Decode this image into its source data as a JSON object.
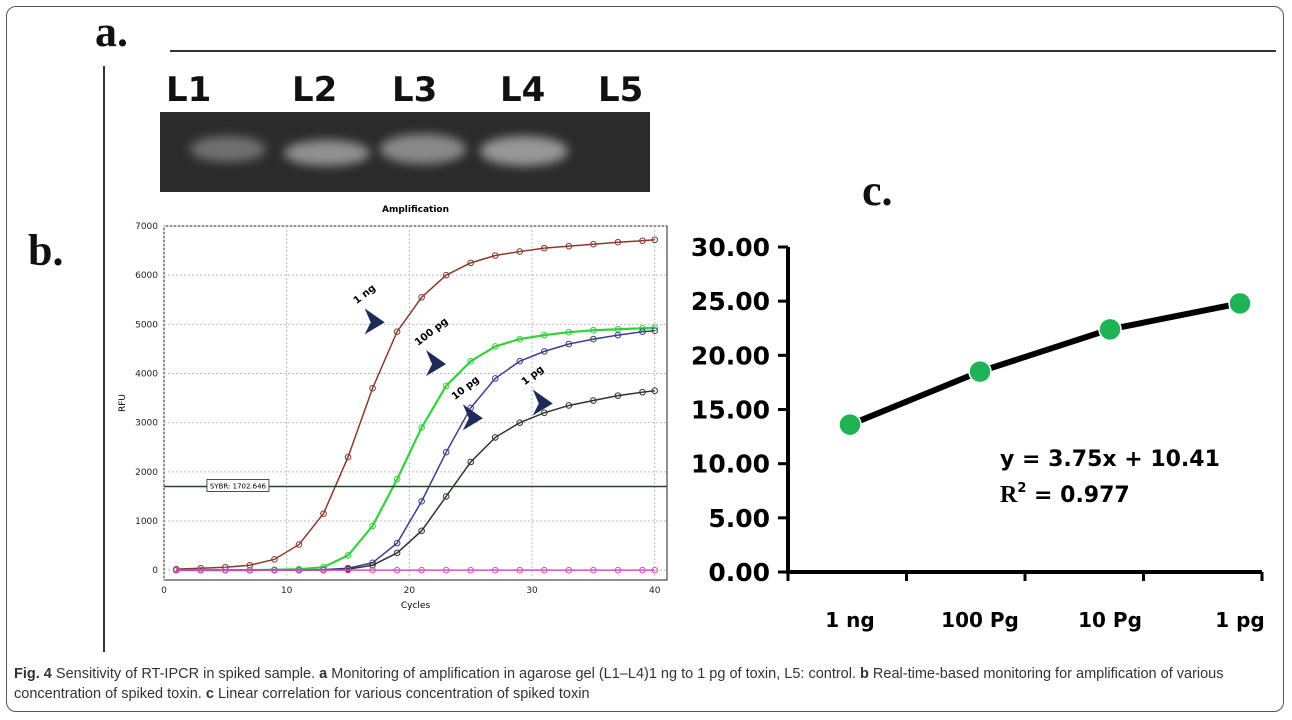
{
  "panels": {
    "a": "a",
    "b": "b",
    "c": "c"
  },
  "panel_suffix": ".",
  "gel": {
    "lanes": [
      "L1",
      "L2",
      "L3",
      "L4",
      "L5"
    ],
    "band_intensity": [
      0.55,
      0.8,
      0.75,
      0.85,
      0.0
    ]
  },
  "caption": {
    "figure": "Fig. 4",
    "intro": "Sensitivity of RT-IPCR in spiked sample.",
    "a_letter": "a",
    "a_text": "Monitoring of amplification in agarose gel (L1–L4)1 ng to 1 pg of toxin, L5: control.",
    "b_letter": "b",
    "b_text": "Real-time-based monitoring for amplification of various concentration of spiked toxin.",
    "c_letter": "c",
    "c_text": "Linear correlation for various concentration of spiked toxin"
  },
  "colors": {
    "brown": "#8a3a2c",
    "green": "#33d13a",
    "navy": "#3a3f8f",
    "grey": "#333333",
    "pink": "#d74fc4",
    "threshold": "#1d4d1d",
    "arrow": "#1c2b57",
    "dot": "#1fb356"
  },
  "chart_data": [
    {
      "type": "line",
      "title": "Amplification",
      "xlabel": "Cycles",
      "ylabel": "RFU",
      "xlim": [
        0,
        41
      ],
      "ylim": [
        -200,
        7000
      ],
      "xticks": [
        0,
        10,
        20,
        30,
        40
      ],
      "yticks": [
        0,
        1000,
        2000,
        3000,
        4000,
        5000,
        6000,
        7000
      ],
      "grid": true,
      "threshold": {
        "value": 1702.646,
        "label": "SYBR: 1702.646"
      },
      "series": [
        {
          "name": "1 ng",
          "x": [
            1,
            3,
            5,
            7,
            9,
            11,
            13,
            15,
            17,
            19,
            21,
            23,
            25,
            27,
            29,
            31,
            33,
            35,
            37,
            39,
            40
          ],
          "y": [
            20,
            40,
            60,
            100,
            220,
            520,
            1150,
            2300,
            3700,
            4850,
            5550,
            6000,
            6250,
            6400,
            6480,
            6550,
            6590,
            6630,
            6670,
            6700,
            6720
          ],
          "color": "brown"
        },
        {
          "name": "100 pg",
          "x": [
            1,
            3,
            5,
            7,
            9,
            11,
            13,
            15,
            17,
            19,
            21,
            23,
            25,
            27,
            29,
            31,
            33,
            35,
            37,
            39,
            40
          ],
          "y": [
            0,
            0,
            0,
            0,
            10,
            20,
            60,
            300,
            900,
            1850,
            2900,
            3750,
            4250,
            4550,
            4700,
            4780,
            4840,
            4880,
            4900,
            4920,
            4930
          ],
          "color": "green"
        },
        {
          "name": "10 pg",
          "x": [
            1,
            3,
            5,
            7,
            9,
            11,
            13,
            15,
            17,
            19,
            21,
            23,
            25,
            27,
            29,
            31,
            33,
            35,
            37,
            39,
            40
          ],
          "y": [
            0,
            0,
            0,
            0,
            0,
            0,
            10,
            40,
            150,
            550,
            1400,
            2400,
            3300,
            3900,
            4250,
            4450,
            4600,
            4700,
            4780,
            4850,
            4870
          ],
          "color": "navy"
        },
        {
          "name": "1 pg",
          "x": [
            1,
            3,
            5,
            7,
            9,
            11,
            13,
            15,
            17,
            19,
            21,
            23,
            25,
            27,
            29,
            31,
            33,
            35,
            37,
            39,
            40
          ],
          "y": [
            0,
            0,
            0,
            0,
            0,
            0,
            0,
            20,
            100,
            350,
            800,
            1500,
            2200,
            2700,
            3000,
            3200,
            3350,
            3450,
            3550,
            3620,
            3650
          ],
          "color": "grey"
        },
        {
          "name": "control",
          "x": [
            1,
            3,
            5,
            7,
            9,
            11,
            13,
            15,
            17,
            19,
            21,
            23,
            25,
            27,
            29,
            31,
            33,
            35,
            37,
            39,
            40
          ],
          "y": [
            0,
            0,
            0,
            0,
            0,
            0,
            0,
            0,
            0,
            0,
            0,
            0,
            0,
            0,
            0,
            0,
            0,
            0,
            0,
            0,
            0
          ],
          "color": "pink"
        }
      ],
      "annotations": [
        {
          "text": "1 ng",
          "x": 17.5,
          "y": 5000
        },
        {
          "text": "100 pg",
          "x": 22.5,
          "y": 4150
        },
        {
          "text": "10 pg",
          "x": 25.5,
          "y": 3050
        },
        {
          "text": "1 pg",
          "x": 31.2,
          "y": 3350
        }
      ]
    },
    {
      "type": "line",
      "categories": [
        "1 ng",
        "100 Pg",
        "10 Pg",
        "1 pg"
      ],
      "values": [
        13.6,
        18.5,
        22.4,
        24.8
      ],
      "ylim": [
        0,
        30
      ],
      "yticks": [
        "0.00",
        "5.00",
        "10.00",
        "15.00",
        "20.00",
        "25.00",
        "30.00"
      ],
      "equation": "y = 3.75x + 10.41",
      "r2_prefix": "R",
      "r2_sup": "2",
      "r2_value": " = 0.977"
    }
  ]
}
